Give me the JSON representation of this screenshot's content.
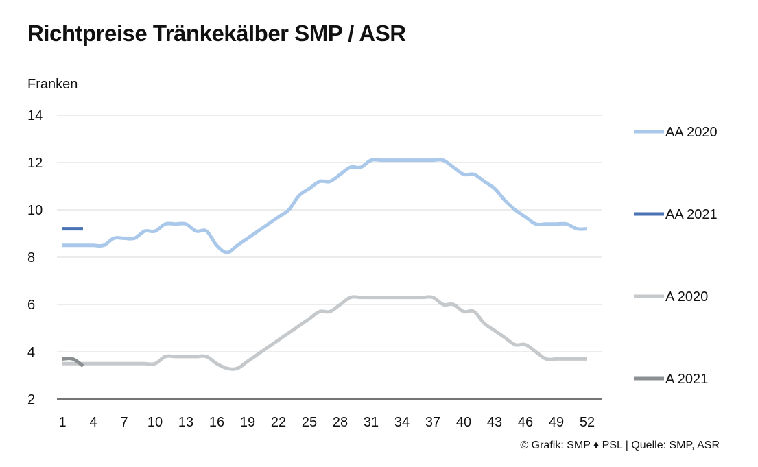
{
  "title": "Richtpreise Tränkekälber SMP / ASR",
  "ylabel": "Franken",
  "source": "© Grafik: SMP ♦ PSL | Quelle: SMP, ASR",
  "chart_data": {
    "type": "line",
    "title": "Richtpreise Tränkekälber SMP / ASR",
    "xlabel": "",
    "ylabel": "Franken",
    "xlim": [
      1,
      52
    ],
    "ylim": [
      2,
      14
    ],
    "x_ticks": [
      1,
      4,
      7,
      10,
      13,
      16,
      19,
      22,
      25,
      28,
      31,
      34,
      37,
      40,
      43,
      46,
      49,
      52
    ],
    "y_ticks": [
      2,
      4,
      6,
      8,
      10,
      12,
      14
    ],
    "grid": true,
    "legend_position": "right",
    "series": [
      {
        "name": "AA 2020",
        "color": "#a9c8ea",
        "x": [
          1,
          2,
          3,
          4,
          5,
          6,
          7,
          8,
          9,
          10,
          11,
          12,
          13,
          14,
          15,
          16,
          17,
          18,
          19,
          20,
          21,
          22,
          23,
          24,
          25,
          26,
          27,
          28,
          29,
          30,
          31,
          32,
          33,
          34,
          35,
          36,
          37,
          38,
          39,
          40,
          41,
          42,
          43,
          44,
          45,
          46,
          47,
          48,
          49,
          50,
          51,
          52
        ],
        "y": [
          8.5,
          8.5,
          8.5,
          8.5,
          8.5,
          8.8,
          8.8,
          8.8,
          9.1,
          9.1,
          9.4,
          9.4,
          9.4,
          9.1,
          9.1,
          8.5,
          8.2,
          8.5,
          8.8,
          9.1,
          9.4,
          9.7,
          10.0,
          10.6,
          10.9,
          11.2,
          11.2,
          11.5,
          11.8,
          11.8,
          12.1,
          12.1,
          12.1,
          12.1,
          12.1,
          12.1,
          12.1,
          12.1,
          11.8,
          11.5,
          11.5,
          11.2,
          10.9,
          10.4,
          10.0,
          9.7,
          9.4,
          9.4,
          9.4,
          9.4,
          9.2,
          9.2
        ]
      },
      {
        "name": "AA 2021",
        "color": "#4a73b5",
        "x": [
          1,
          3
        ],
        "y": [
          9.2,
          9.2
        ]
      },
      {
        "name": "A 2020",
        "color": "#c5c9cc",
        "x": [
          1,
          2,
          3,
          4,
          5,
          6,
          7,
          8,
          9,
          10,
          11,
          12,
          13,
          14,
          15,
          16,
          17,
          18,
          19,
          20,
          21,
          22,
          23,
          24,
          25,
          26,
          27,
          28,
          29,
          30,
          31,
          32,
          33,
          34,
          35,
          36,
          37,
          38,
          39,
          40,
          41,
          42,
          43,
          44,
          45,
          46,
          47,
          48,
          49,
          50,
          51,
          52
        ],
        "y": [
          3.5,
          3.5,
          3.5,
          3.5,
          3.5,
          3.5,
          3.5,
          3.5,
          3.5,
          3.5,
          3.8,
          3.8,
          3.8,
          3.8,
          3.8,
          3.5,
          3.3,
          3.3,
          3.6,
          3.9,
          4.2,
          4.5,
          4.8,
          5.1,
          5.4,
          5.7,
          5.7,
          6.0,
          6.3,
          6.3,
          6.3,
          6.3,
          6.3,
          6.3,
          6.3,
          6.3,
          6.3,
          6.0,
          6.0,
          5.7,
          5.7,
          5.2,
          4.9,
          4.6,
          4.3,
          4.3,
          4.0,
          3.7,
          3.7,
          3.7,
          3.7,
          3.7
        ]
      },
      {
        "name": "A 2021",
        "color": "#8a8f92",
        "x": [
          1,
          2,
          3
        ],
        "y": [
          3.7,
          3.7,
          3.4
        ]
      }
    ]
  }
}
